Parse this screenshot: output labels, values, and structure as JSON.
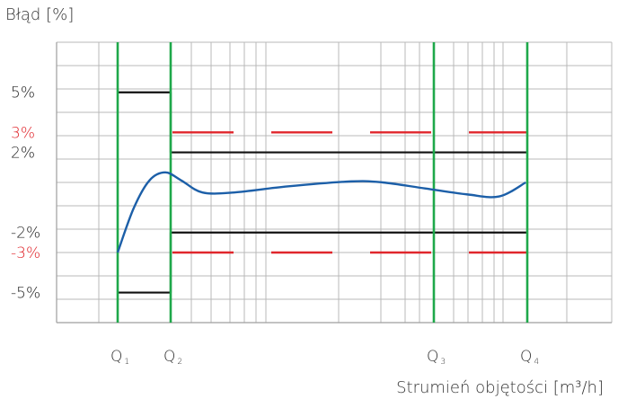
{
  "chart_data": {
    "type": "line",
    "ylabel": "Błąd [%]",
    "xlabel": "Strumień objętości [m³/h]",
    "x_markers": [
      {
        "base": "Q",
        "sub": "1"
      },
      {
        "base": "Q",
        "sub": "2"
      },
      {
        "base": "Q",
        "sub": "3"
      },
      {
        "base": "Q",
        "sub": "4"
      }
    ],
    "y_ticks": [
      {
        "label": "5%",
        "value": 5,
        "color": "#222222"
      },
      {
        "label": "3%",
        "value": 3,
        "color": "#e0262c"
      },
      {
        "label": "2%",
        "value": 2,
        "color": "#222222"
      },
      {
        "label": "-2%",
        "value": -2,
        "color": "#222222"
      },
      {
        "label": "-3%",
        "value": -3,
        "color": "#e0262c"
      },
      {
        "label": "-5%",
        "value": -5,
        "color": "#222222"
      }
    ],
    "ylim": [
      -6.5,
      7.5
    ],
    "grid": true,
    "limits": {
      "q1_q2": {
        "upper": 5,
        "lower": -5
      },
      "q2_q4": {
        "upper": 2,
        "lower": -2
      },
      "dashed": {
        "upper": 3,
        "lower": -3
      }
    },
    "error_curve": [
      [
        0.0,
        -3.0
      ],
      [
        0.3,
        -0.8
      ],
      [
        0.6,
        0.6
      ],
      [
        0.9,
        1.0
      ],
      [
        1.2,
        0.6
      ],
      [
        1.6,
        0.0
      ],
      [
        2.2,
        0.0
      ],
      [
        3.2,
        0.3
      ],
      [
        4.4,
        0.55
      ],
      [
        5.0,
        0.5
      ],
      [
        5.8,
        0.2
      ],
      [
        6.6,
        -0.1
      ],
      [
        7.2,
        -0.2
      ],
      [
        7.7,
        0.5
      ]
    ],
    "colors": {
      "curve": "#1c5fa8",
      "qline": "#1ea84a",
      "limit": "#111111",
      "dashed": "#e0262c",
      "grid": "#b9b9b9",
      "axis": "#9e9e9e"
    }
  }
}
